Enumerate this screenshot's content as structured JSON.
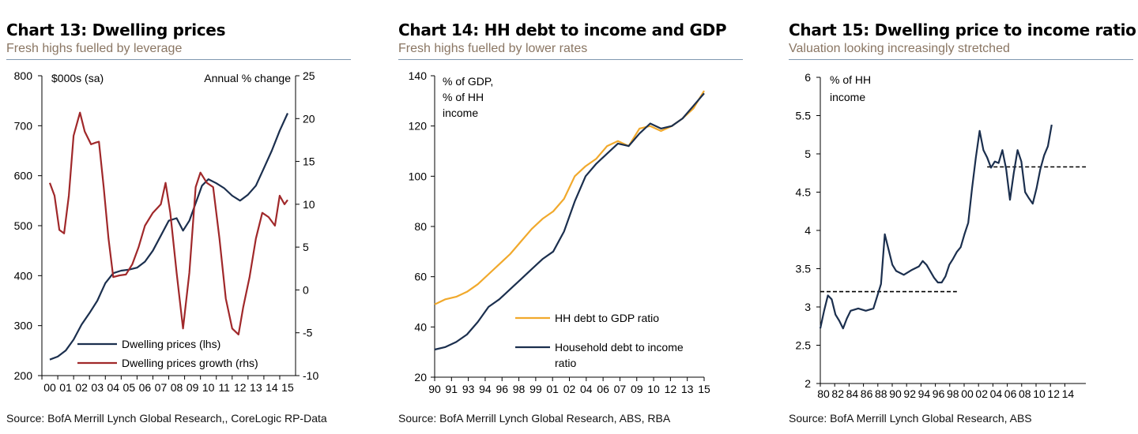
{
  "colors": {
    "navy": "#1b2f4e",
    "maroon": "#a0282a",
    "gold": "#f1a92c",
    "subtitle": "#8a7663",
    "rule": "#7f98b0"
  },
  "panels": [
    {
      "title": "Chart 13: Dwelling prices",
      "subtitle": "Fresh highs fuelled by leverage",
      "source": "Source: BofA Merrill Lynch Global Research,, CoreLogic RP-Data"
    },
    {
      "title": "Chart 14: HH debt to income and GDP",
      "subtitle": "Fresh highs fuelled by lower rates",
      "source": "Source: BofA Merrill Lynch Global Research, ABS, RBA"
    },
    {
      "title": "Chart 15: Dwelling price to income ratio",
      "subtitle": "Valuation looking increasingly stretched",
      "source": "Source: BofA Merrill Lynch Global Research, ABS"
    }
  ],
  "chart_data": [
    {
      "type": "line",
      "title": "Chart 13: Dwelling prices",
      "left_axis_label": "$000s (sa)",
      "right_axis_label": "Annual % change",
      "ylim_left": [
        200,
        800
      ],
      "ylim_right": [
        -10,
        25
      ],
      "yticks_left": [
        "800",
        "700",
        "600",
        "500",
        "400",
        "300",
        "200"
      ],
      "yticks_right": [
        "25",
        "20",
        "15",
        "10",
        "5",
        "0",
        "-5",
        "-10"
      ],
      "xlim": [
        1999.5,
        2015.5
      ],
      "x_ticks": [
        "00",
        "01",
        "02",
        "03",
        "04",
        "05",
        "06",
        "07",
        "08",
        "09",
        "10",
        "11",
        "12",
        "13",
        "14",
        "15"
      ],
      "legend": [
        "Dwelling prices (lhs)",
        "Dwelling prices growth (rhs)"
      ],
      "series": [
        {
          "name": "Dwelling prices (lhs)",
          "axis": "left",
          "color": "navy",
          "points": [
            [
              2000.0,
              232
            ],
            [
              2000.5,
              238
            ],
            [
              2001.0,
              250
            ],
            [
              2001.5,
              272
            ],
            [
              2002.0,
              302
            ],
            [
              2002.5,
              325
            ],
            [
              2003.0,
              350
            ],
            [
              2003.5,
              385
            ],
            [
              2004.0,
              405
            ],
            [
              2004.5,
              410
            ],
            [
              2005.0,
              412
            ],
            [
              2005.5,
              416
            ],
            [
              2006.0,
              428
            ],
            [
              2006.5,
              450
            ],
            [
              2007.0,
              480
            ],
            [
              2007.5,
              510
            ],
            [
              2008.0,
              515
            ],
            [
              2008.4,
              490
            ],
            [
              2008.8,
              510
            ],
            [
              2009.2,
              545
            ],
            [
              2009.6,
              580
            ],
            [
              2010.0,
              593
            ],
            [
              2010.5,
              585
            ],
            [
              2011.0,
              575
            ],
            [
              2011.5,
              560
            ],
            [
              2012.0,
              550
            ],
            [
              2012.5,
              562
            ],
            [
              2013.0,
              580
            ],
            [
              2013.5,
              615
            ],
            [
              2014.0,
              650
            ],
            [
              2014.5,
              690
            ],
            [
              2015.0,
              725
            ]
          ]
        },
        {
          "name": "Dwelling prices growth (rhs)",
          "axis": "right",
          "color": "maroon",
          "points": [
            [
              2000.0,
              12.5
            ],
            [
              2000.3,
              11
            ],
            [
              2000.6,
              7
            ],
            [
              2000.9,
              6.6
            ],
            [
              2001.2,
              11
            ],
            [
              2001.5,
              18
            ],
            [
              2001.9,
              20.7
            ],
            [
              2002.2,
              18.5
            ],
            [
              2002.6,
              17
            ],
            [
              2002.9,
              17.2
            ],
            [
              2003.1,
              17.3
            ],
            [
              2003.4,
              12
            ],
            [
              2003.7,
              6
            ],
            [
              2004.0,
              1.5
            ],
            [
              2004.4,
              1.7
            ],
            [
              2004.8,
              1.8
            ],
            [
              2005.2,
              3
            ],
            [
              2005.6,
              5
            ],
            [
              2006.0,
              7.5
            ],
            [
              2006.5,
              9
            ],
            [
              2007.0,
              10
            ],
            [
              2007.3,
              12.5
            ],
            [
              2007.6,
              9
            ],
            [
              2008.0,
              2
            ],
            [
              2008.4,
              -4.5
            ],
            [
              2008.8,
              2
            ],
            [
              2009.2,
              12
            ],
            [
              2009.5,
              13.7
            ],
            [
              2009.9,
              12.5
            ],
            [
              2010.3,
              12
            ],
            [
              2010.7,
              6
            ],
            [
              2011.1,
              -1
            ],
            [
              2011.5,
              -4.5
            ],
            [
              2011.9,
              -5.2
            ],
            [
              2012.2,
              -2
            ],
            [
              2012.6,
              1.5
            ],
            [
              2013.0,
              6
            ],
            [
              2013.4,
              9
            ],
            [
              2013.8,
              8.5
            ],
            [
              2014.2,
              7.5
            ],
            [
              2014.5,
              11
            ],
            [
              2014.8,
              10
            ],
            [
              2015.0,
              10.5
            ]
          ]
        }
      ]
    },
    {
      "type": "line",
      "title": "Chart 14: HH debt to income and GDP",
      "ylabel": "% of GDP, % of HH income",
      "ylim": [
        20,
        140
      ],
      "yticks": [
        "140",
        "120",
        "100",
        "80",
        "60",
        "40",
        "20"
      ],
      "xlim": [
        1990,
        2015
      ],
      "x_ticks": [
        "90",
        "91",
        "93",
        "94",
        "96",
        "98",
        "99",
        "01",
        "02",
        "04",
        "06",
        "07",
        "09",
        "10",
        "12",
        "13",
        "15"
      ],
      "legend": [
        "HH debt to GDP ratio",
        "Household debt to income ratio"
      ],
      "series": [
        {
          "name": "HH debt to GDP ratio",
          "color": "gold",
          "points": [
            [
              1990.0,
              49
            ],
            [
              1991.0,
              51
            ],
            [
              1992.0,
              52
            ],
            [
              1993.0,
              54
            ],
            [
              1994.0,
              57
            ],
            [
              1995.0,
              61
            ],
            [
              1996.0,
              65
            ],
            [
              1997.0,
              69
            ],
            [
              1998.0,
              74
            ],
            [
              1999.0,
              79
            ],
            [
              2000.0,
              83
            ],
            [
              2001.0,
              86
            ],
            [
              2002.0,
              91
            ],
            [
              2003.0,
              100
            ],
            [
              2004.0,
              104
            ],
            [
              2005.0,
              107
            ],
            [
              2006.0,
              112
            ],
            [
              2007.0,
              114
            ],
            [
              2008.0,
              112
            ],
            [
              2009.0,
              119
            ],
            [
              2010.0,
              120
            ],
            [
              2011.0,
              118
            ],
            [
              2012.0,
              120
            ],
            [
              2013.0,
              123
            ],
            [
              2014.0,
              127
            ],
            [
              2015.0,
              134
            ]
          ]
        },
        {
          "name": "Household debt to income ratio",
          "color": "navy",
          "points": [
            [
              1990.0,
              31
            ],
            [
              1991.0,
              32
            ],
            [
              1992.0,
              34
            ],
            [
              1993.0,
              37
            ],
            [
              1994.0,
              42
            ],
            [
              1995.0,
              48
            ],
            [
              1996.0,
              51
            ],
            [
              1997.0,
              55
            ],
            [
              1998.0,
              59
            ],
            [
              1999.0,
              63
            ],
            [
              2000.0,
              67
            ],
            [
              2001.0,
              70
            ],
            [
              2002.0,
              78
            ],
            [
              2003.0,
              90
            ],
            [
              2004.0,
              100
            ],
            [
              2005.0,
              105
            ],
            [
              2006.0,
              109
            ],
            [
              2007.0,
              113
            ],
            [
              2008.0,
              112
            ],
            [
              2009.0,
              117
            ],
            [
              2010.0,
              121
            ],
            [
              2011.0,
              119
            ],
            [
              2012.0,
              120
            ],
            [
              2013.0,
              123
            ],
            [
              2014.0,
              128
            ],
            [
              2015.0,
              133
            ]
          ]
        }
      ]
    },
    {
      "type": "line",
      "title": "Chart 15: Dwelling price to income ratio",
      "ylabel": "% of HH income",
      "ylim": [
        2,
        6
      ],
      "yticks": [
        "6",
        "5.5",
        "5",
        "4.5",
        "4",
        "3.5",
        "3",
        "2.5",
        "2"
      ],
      "xlim": [
        1980,
        2015
      ],
      "x_ticks": [
        "80",
        "82",
        "84",
        "86",
        "88",
        "90",
        "92",
        "94",
        "96",
        "98",
        "00",
        "02",
        "04",
        "06",
        "08",
        "10",
        "12",
        "14"
      ],
      "reference_lines": [
        {
          "y": 3.2,
          "x_from": 1980,
          "x_to": 1998
        },
        {
          "y": 4.83,
          "x_from": 2002,
          "x_to": 2015
        }
      ],
      "series": [
        {
          "name": "",
          "color": "navy",
          "points": [
            [
              1980.0,
              2.72
            ],
            [
              1980.5,
              2.95
            ],
            [
              1981.0,
              3.15
            ],
            [
              1981.5,
              3.1
            ],
            [
              1982.0,
              2.9
            ],
            [
              1982.5,
              2.82
            ],
            [
              1983.0,
              2.72
            ],
            [
              1983.5,
              2.85
            ],
            [
              1984.0,
              2.95
            ],
            [
              1985.0,
              2.98
            ],
            [
              1986.0,
              2.95
            ],
            [
              1987.0,
              2.98
            ],
            [
              1988.0,
              3.3
            ],
            [
              1988.5,
              3.95
            ],
            [
              1989.0,
              3.75
            ],
            [
              1989.5,
              3.55
            ],
            [
              1990.0,
              3.47
            ],
            [
              1991.0,
              3.42
            ],
            [
              1992.0,
              3.48
            ],
            [
              1993.0,
              3.53
            ],
            [
              1993.5,
              3.6
            ],
            [
              1994.0,
              3.55
            ],
            [
              1995.0,
              3.38
            ],
            [
              1995.5,
              3.32
            ],
            [
              1996.0,
              3.32
            ],
            [
              1996.5,
              3.4
            ],
            [
              1997.0,
              3.55
            ],
            [
              1997.5,
              3.63
            ],
            [
              1998.0,
              3.72
            ],
            [
              1998.5,
              3.78
            ],
            [
              1999.0,
              3.95
            ],
            [
              1999.5,
              4.1
            ],
            [
              2000.0,
              4.55
            ],
            [
              2000.5,
              4.95
            ],
            [
              2001.0,
              5.3
            ],
            [
              2001.5,
              5.05
            ],
            [
              2002.0,
              4.95
            ],
            [
              2002.5,
              4.82
            ],
            [
              2003.0,
              4.9
            ],
            [
              2003.5,
              4.88
            ],
            [
              2004.0,
              5.05
            ],
            [
              2004.5,
              4.8
            ],
            [
              2005.0,
              4.4
            ],
            [
              2005.5,
              4.75
            ],
            [
              2006.0,
              5.05
            ],
            [
              2006.5,
              4.9
            ],
            [
              2007.0,
              4.5
            ],
            [
              2007.5,
              4.42
            ],
            [
              2008.0,
              4.35
            ],
            [
              2008.5,
              4.55
            ],
            [
              2009.0,
              4.8
            ],
            [
              2009.5,
              4.98
            ],
            [
              2010.0,
              5.1
            ],
            [
              2010.5,
              5.38
            ]
          ]
        }
      ]
    }
  ]
}
